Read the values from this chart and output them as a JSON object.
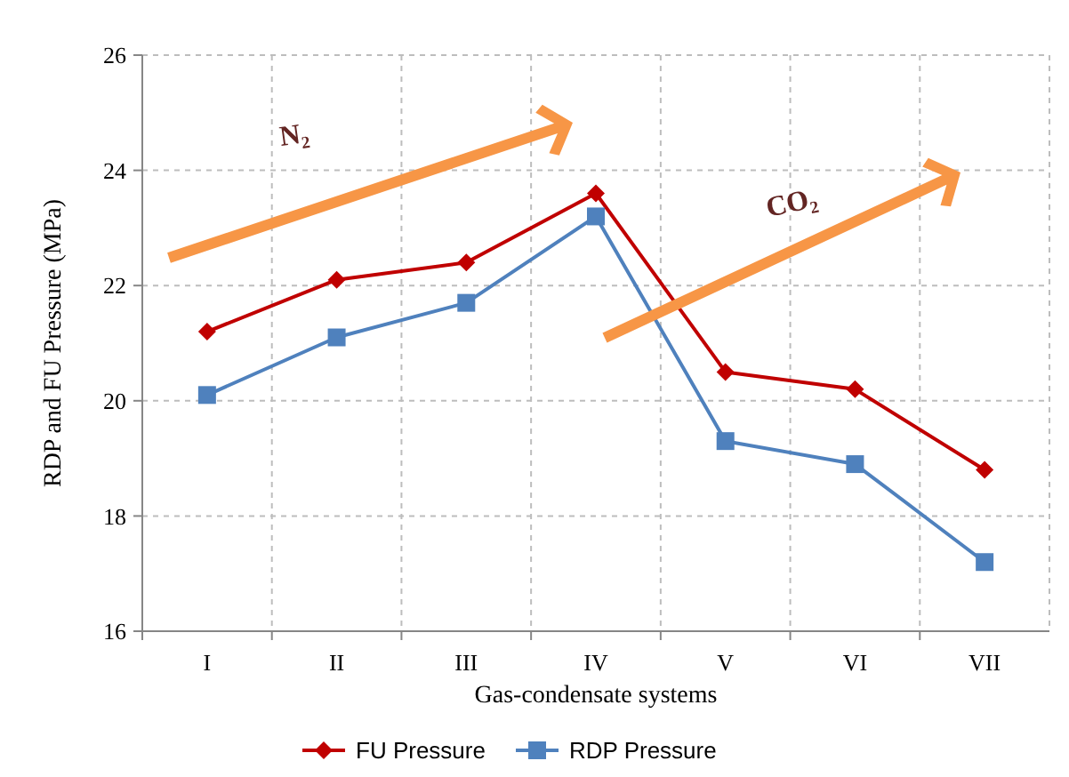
{
  "chart_data": {
    "type": "line",
    "xlabel": "Gas-condensate systems",
    "ylabel": "RDP and FU Pressure (MPa)",
    "categories": [
      "I",
      "II",
      "III",
      "IV",
      "V",
      "VI",
      "VII"
    ],
    "series": [
      {
        "name": "FU Pressure",
        "color": "#c00000",
        "marker": "diamond",
        "values": [
          21.2,
          22.1,
          22.4,
          23.6,
          20.5,
          20.2,
          18.8
        ]
      },
      {
        "name": "RDP Pressure",
        "color": "#4f81bd",
        "marker": "square",
        "values": [
          20.1,
          21.1,
          21.7,
          23.2,
          19.3,
          18.9,
          17.2
        ]
      }
    ],
    "ylim": [
      16,
      26
    ],
    "yticks": [
      16,
      18,
      20,
      22,
      24,
      26
    ],
    "grid": true,
    "legend": "bottom",
    "annotations": [
      "N₂",
      "CO₂"
    ]
  }
}
